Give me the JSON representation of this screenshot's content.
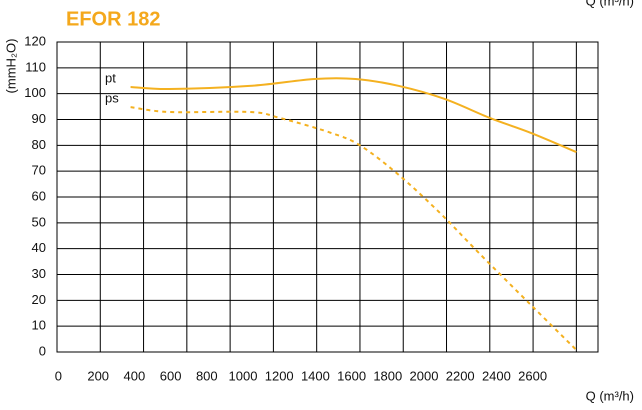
{
  "chart_data": {
    "type": "line",
    "title": "EFOR 182",
    "ylabel": "(mmH₂O)",
    "xlabel": "Q (m³/h)",
    "xlim": [
      0,
      2500
    ],
    "ylim": [
      0,
      120
    ],
    "xticks": [
      0,
      200,
      400,
      600,
      800,
      1000,
      1200,
      1400,
      1600,
      1800,
      2000,
      2200,
      2400,
      2600
    ],
    "yticks": [
      0,
      10,
      20,
      30,
      40,
      50,
      60,
      70,
      80,
      90,
      100,
      110,
      120
    ],
    "grid": true,
    "series": [
      {
        "name": "pt",
        "color": "#f4b120",
        "dashed": false,
        "x": [
          340,
          520,
          890,
          1190,
          1380,
          1580,
          1790,
          2000,
          2190,
          2400
        ],
        "values": [
          102.6,
          101.8,
          103,
          105.7,
          105.7,
          103,
          98,
          90.6,
          84.8,
          77.4
        ]
      },
      {
        "name": "ps",
        "color": "#f4b120",
        "dashed": true,
        "x": [
          340,
          520,
          890,
          1030,
          1260,
          1400,
          1580,
          1770,
          1950,
          2190,
          2400
        ],
        "values": [
          94.8,
          92.9,
          92.9,
          90.6,
          85,
          80,
          68.5,
          53.8,
          38.3,
          18.2,
          0.8
        ]
      }
    ]
  }
}
